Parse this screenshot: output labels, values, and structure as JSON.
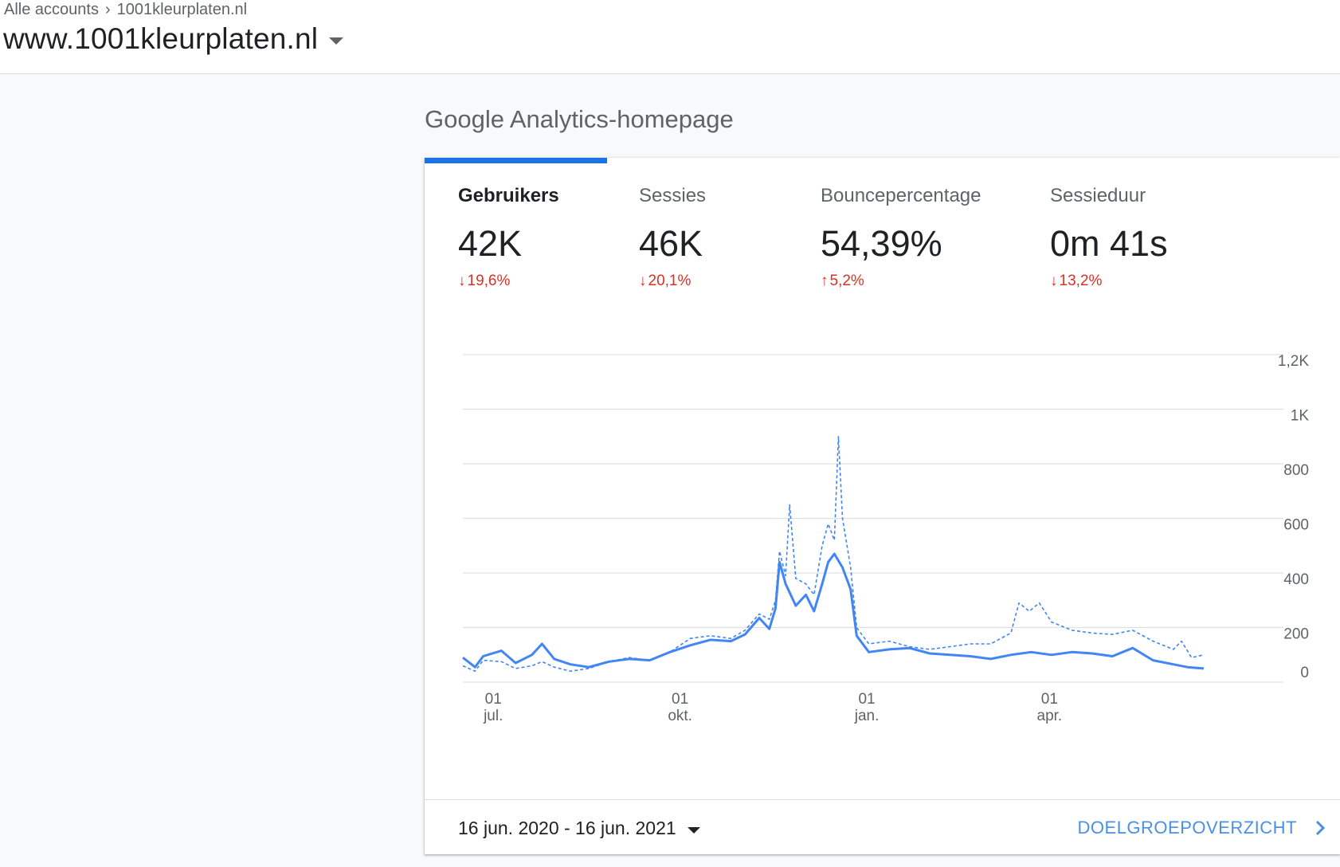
{
  "breadcrumb": {
    "account": "Alle accounts",
    "separator": "›",
    "property": "1001kleurplaten.nl"
  },
  "property_name": "www.1001kleurplaten.nl",
  "section_title": "Google Analytics-homepage",
  "metrics": [
    {
      "label": "Gebruikers",
      "value": "42K",
      "direction": "down",
      "change": "19,6%",
      "active": true
    },
    {
      "label": "Sessies",
      "value": "46K",
      "direction": "down",
      "change": "20,1%",
      "active": false
    },
    {
      "label": "Bouncepercentage",
      "value": "54,39%",
      "direction": "up",
      "change": "5,2%",
      "active": false
    },
    {
      "label": "Sessieduur",
      "value": "0m 41s",
      "direction": "down",
      "change": "13,2%",
      "active": false
    }
  ],
  "footer": {
    "date_range": "16 jun. 2020 - 16 jun. 2021",
    "audience_link": "DOELGROEPOVERZICHT"
  },
  "colors": {
    "accent": "#1a73e8",
    "series": "#4285f4",
    "negative": "#d93025"
  },
  "chart_data": {
    "type": "line",
    "x_start": "2020-06-16",
    "x_end": "2021-06-16",
    "x_ticks": [
      {
        "date": "2020-07-01",
        "day": "01",
        "month": "jul."
      },
      {
        "date": "2020-10-01",
        "day": "01",
        "month": "okt."
      },
      {
        "date": "2021-01-01",
        "day": "01",
        "month": "jan."
      },
      {
        "date": "2021-04-01",
        "day": "01",
        "month": "apr."
      }
    ],
    "y_ticks": [
      0,
      200,
      400,
      600,
      800,
      1000,
      1200
    ],
    "y_tick_labels": [
      "0",
      "200",
      "400",
      "600",
      "800",
      "1K",
      "1,2K"
    ],
    "ylim": [
      0,
      1200
    ],
    "grid": true,
    "series": [
      {
        "style": "solid",
        "points": [
          [
            "2020-06-16",
            90
          ],
          [
            "2020-06-22",
            55
          ],
          [
            "2020-06-26",
            95
          ],
          [
            "2020-07-05",
            115
          ],
          [
            "2020-07-12",
            70
          ],
          [
            "2020-07-20",
            100
          ],
          [
            "2020-07-25",
            140
          ],
          [
            "2020-07-31",
            85
          ],
          [
            "2020-08-08",
            65
          ],
          [
            "2020-08-17",
            55
          ],
          [
            "2020-08-27",
            75
          ],
          [
            "2020-09-06",
            85
          ],
          [
            "2020-09-16",
            80
          ],
          [
            "2020-09-26",
            110
          ],
          [
            "2020-10-06",
            135
          ],
          [
            "2020-10-16",
            155
          ],
          [
            "2020-10-26",
            150
          ],
          [
            "2020-11-02",
            175
          ],
          [
            "2020-11-09",
            235
          ],
          [
            "2020-11-14",
            195
          ],
          [
            "2020-11-17",
            270
          ],
          [
            "2020-11-19",
            440
          ],
          [
            "2020-11-22",
            360
          ],
          [
            "2020-11-27",
            280
          ],
          [
            "2020-12-02",
            320
          ],
          [
            "2020-12-06",
            260
          ],
          [
            "2020-12-10",
            360
          ],
          [
            "2020-12-13",
            440
          ],
          [
            "2020-12-16",
            470
          ],
          [
            "2020-12-20",
            420
          ],
          [
            "2020-12-24",
            340
          ],
          [
            "2020-12-27",
            170
          ],
          [
            "2021-01-02",
            110
          ],
          [
            "2021-01-12",
            120
          ],
          [
            "2021-01-22",
            125
          ],
          [
            "2021-02-01",
            105
          ],
          [
            "2021-02-11",
            100
          ],
          [
            "2021-02-21",
            95
          ],
          [
            "2021-03-03",
            85
          ],
          [
            "2021-03-13",
            100
          ],
          [
            "2021-03-23",
            110
          ],
          [
            "2021-04-02",
            100
          ],
          [
            "2021-04-12",
            110
          ],
          [
            "2021-04-22",
            105
          ],
          [
            "2021-05-02",
            95
          ],
          [
            "2021-05-12",
            125
          ],
          [
            "2021-05-22",
            80
          ],
          [
            "2021-06-01",
            65
          ],
          [
            "2021-06-08",
            55
          ],
          [
            "2021-06-16",
            50
          ]
        ]
      },
      {
        "style": "dashed",
        "points": [
          [
            "2020-06-16",
            60
          ],
          [
            "2020-06-22",
            40
          ],
          [
            "2020-06-26",
            80
          ],
          [
            "2020-07-05",
            75
          ],
          [
            "2020-07-12",
            50
          ],
          [
            "2020-07-20",
            60
          ],
          [
            "2020-07-25",
            75
          ],
          [
            "2020-07-31",
            55
          ],
          [
            "2020-08-08",
            40
          ],
          [
            "2020-08-17",
            50
          ],
          [
            "2020-08-27",
            75
          ],
          [
            "2020-09-06",
            90
          ],
          [
            "2020-09-16",
            80
          ],
          [
            "2020-09-26",
            110
          ],
          [
            "2020-10-06",
            160
          ],
          [
            "2020-10-16",
            170
          ],
          [
            "2020-10-26",
            160
          ],
          [
            "2020-11-02",
            190
          ],
          [
            "2020-11-09",
            250
          ],
          [
            "2020-11-14",
            230
          ],
          [
            "2020-11-17",
            300
          ],
          [
            "2020-11-19",
            480
          ],
          [
            "2020-11-22",
            390
          ],
          [
            "2020-11-24",
            650
          ],
          [
            "2020-11-27",
            380
          ],
          [
            "2020-12-02",
            360
          ],
          [
            "2020-12-06",
            320
          ],
          [
            "2020-12-10",
            500
          ],
          [
            "2020-12-13",
            580
          ],
          [
            "2020-12-16",
            520
          ],
          [
            "2020-12-18",
            900
          ],
          [
            "2020-12-20",
            600
          ],
          [
            "2020-12-24",
            420
          ],
          [
            "2020-12-27",
            200
          ],
          [
            "2021-01-02",
            140
          ],
          [
            "2021-01-12",
            150
          ],
          [
            "2021-01-22",
            130
          ],
          [
            "2021-02-01",
            120
          ],
          [
            "2021-02-11",
            130
          ],
          [
            "2021-02-21",
            140
          ],
          [
            "2021-03-03",
            140
          ],
          [
            "2021-03-13",
            180
          ],
          [
            "2021-03-17",
            290
          ],
          [
            "2021-03-22",
            260
          ],
          [
            "2021-03-27",
            290
          ],
          [
            "2021-04-02",
            220
          ],
          [
            "2021-04-12",
            190
          ],
          [
            "2021-04-22",
            180
          ],
          [
            "2021-05-02",
            175
          ],
          [
            "2021-05-12",
            190
          ],
          [
            "2021-05-22",
            150
          ],
          [
            "2021-06-01",
            120
          ],
          [
            "2021-06-05",
            150
          ],
          [
            "2021-06-10",
            90
          ],
          [
            "2021-06-16",
            100
          ]
        ]
      }
    ]
  }
}
